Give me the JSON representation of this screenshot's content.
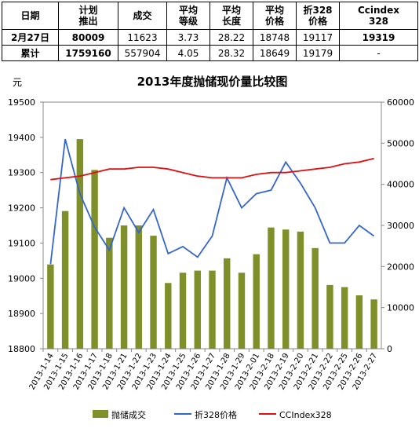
{
  "table": {
    "headers": [
      {
        "line1": "日期",
        "line2": ""
      },
      {
        "line1": "计划",
        "line2": "推出"
      },
      {
        "line1": "成交",
        "line2": ""
      },
      {
        "line1": "平均",
        "line2": "等级"
      },
      {
        "line1": "平均",
        "line2": "长度"
      },
      {
        "line1": "平均",
        "line2": "价格"
      },
      {
        "line1": "折328",
        "line2": "价格"
      },
      {
        "line1": "Ccindex",
        "line2": "328"
      }
    ],
    "row1": [
      "2月27日",
      "80009",
      "11623",
      "3.73",
      "28.22",
      "18748",
      "19117",
      "19319"
    ],
    "row2": [
      "累计",
      "1759160",
      "557904",
      "4.05",
      "28.32",
      "18649",
      "19179",
      "-"
    ]
  },
  "chart_data": {
    "type": "bar",
    "title": "2013年度抛储现价量比较图",
    "ylabel": "元",
    "xlabel": "",
    "categories": [
      "2013-1-14",
      "2013-1-15",
      "2013-1-16",
      "2013-1-17",
      "2013-1-18",
      "2013-1-21",
      "2013-1-22",
      "2013-1-23",
      "2013-1-24",
      "2013-1-25",
      "2013-1-26",
      "2013-1-27",
      "2013-1-28",
      "2013-1-29",
      "2013-2-01",
      "2013-2-18",
      "2013-2-19",
      "2013-2-20",
      "2013-2-21",
      "2013-2-22",
      "2013-2-25",
      "2013-2-26",
      "2013-2-27"
    ],
    "left_axis": {
      "min": 18800,
      "max": 19500,
      "ticks": [
        18800,
        18900,
        19000,
        19100,
        19200,
        19300,
        19400,
        19500
      ]
    },
    "right_axis": {
      "min": 0,
      "max": 60000,
      "ticks": [
        0,
        10000,
        20000,
        30000,
        40000,
        50000,
        60000
      ]
    },
    "grid": false,
    "legend_position": "bottom",
    "series": [
      {
        "name": "抛储成交",
        "type": "bar",
        "axis": "right",
        "color": "#7f8f2a",
        "values": [
          20500,
          33500,
          51000,
          43500,
          27000,
          30000,
          30000,
          27500,
          16000,
          18500,
          19000,
          19000,
          22000,
          18500,
          23000,
          29500,
          29000,
          28500,
          24500,
          15500,
          15000,
          13000,
          12000
        ]
      },
      {
        "name": "折328价格",
        "type": "line",
        "axis": "left",
        "color": "#3366cc",
        "values": [
          19040,
          19395,
          19240,
          19145,
          19080,
          19200,
          19130,
          19195,
          19070,
          19090,
          19060,
          19120,
          19285,
          19200,
          19240,
          19250,
          19330,
          19270,
          19200,
          19100,
          19100,
          19150,
          19120
        ]
      },
      {
        "name": "CCIndex328",
        "type": "line",
        "axis": "left",
        "color": "#dd1111",
        "values": [
          19280,
          19285,
          19290,
          19300,
          19310,
          19310,
          19315,
          19315,
          19310,
          19300,
          19290,
          19285,
          19285,
          19285,
          19295,
          19300,
          19300,
          19305,
          19310,
          19315,
          19325,
          19330,
          19340
        ]
      }
    ]
  }
}
